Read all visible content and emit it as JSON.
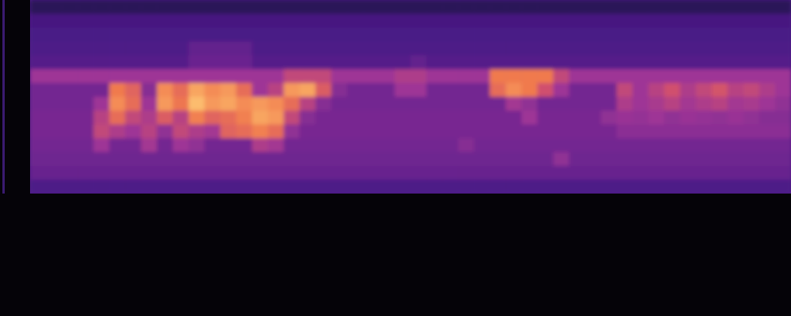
{
  "chart_data": {
    "type": "heatmap",
    "tick_labels": false,
    "zlim": [
      0,
      100
    ],
    "cells": [
      [
        28,
        28,
        28,
        28,
        28,
        28,
        28,
        28,
        28,
        28,
        28,
        28,
        28,
        28,
        28,
        28,
        28,
        28,
        28,
        28,
        28,
        28,
        28,
        28,
        28,
        28,
        28,
        28,
        28,
        28,
        28,
        28,
        28,
        28,
        28,
        28,
        28,
        28,
        28,
        28,
        28,
        28,
        28,
        28,
        28,
        28,
        28,
        28
      ],
      [
        34,
        34,
        34,
        34,
        34,
        34,
        34,
        34,
        34,
        34,
        34,
        34,
        34,
        34,
        34,
        34,
        34,
        34,
        34,
        34,
        34,
        34,
        34,
        34,
        34,
        34,
        34,
        34,
        34,
        34,
        34,
        34,
        34,
        34,
        34,
        34,
        34,
        34,
        34,
        34,
        34,
        34,
        34,
        34,
        34,
        34,
        34,
        34
      ],
      [
        35,
        35,
        35,
        35,
        35,
        35,
        35,
        35,
        35,
        35,
        35,
        35,
        35,
        35,
        35,
        35,
        35,
        35,
        35,
        35,
        35,
        35,
        35,
        35,
        35,
        35,
        35,
        35,
        35,
        35,
        35,
        35,
        35,
        35,
        35,
        35,
        35,
        35,
        35,
        35,
        35,
        35,
        35,
        35,
        35,
        35,
        35,
        35
      ],
      [
        36,
        36,
        36,
        36,
        36,
        36,
        36,
        36,
        36,
        36,
        42,
        42,
        42,
        42,
        36,
        36,
        36,
        36,
        36,
        36,
        36,
        36,
        36,
        36,
        36,
        36,
        36,
        36,
        36,
        36,
        36,
        36,
        36,
        36,
        36,
        36,
        36,
        36,
        36,
        36,
        36,
        36,
        36,
        36,
        36,
        36,
        36,
        36
      ],
      [
        38,
        38,
        38,
        38,
        38,
        38,
        38,
        38,
        38,
        38,
        44,
        44,
        44,
        44,
        38,
        38,
        38,
        38,
        38,
        38,
        38,
        38,
        38,
        38,
        42,
        38,
        38,
        38,
        38,
        38,
        38,
        38,
        38,
        38,
        38,
        38,
        38,
        38,
        38,
        38,
        38,
        38,
        38,
        38,
        38,
        38,
        38,
        38
      ],
      [
        55,
        55,
        55,
        55,
        55,
        55,
        55,
        55,
        55,
        55,
        55,
        55,
        55,
        55,
        55,
        55,
        62,
        62,
        62,
        55,
        55,
        55,
        55,
        58,
        58,
        55,
        55,
        55,
        55,
        75,
        75,
        75,
        75,
        62,
        55,
        55,
        55,
        55,
        55,
        55,
        55,
        55,
        55,
        55,
        55,
        55,
        55,
        55
      ],
      [
        46,
        46,
        46,
        46,
        46,
        75,
        70,
        50,
        78,
        72,
        82,
        78,
        80,
        72,
        55,
        60,
        80,
        82,
        68,
        50,
        46,
        46,
        46,
        55,
        55,
        46,
        46,
        46,
        46,
        72,
        78,
        75,
        65,
        55,
        46,
        46,
        46,
        62,
        55,
        60,
        65,
        58,
        62,
        66,
        60,
        62,
        58,
        55
      ],
      [
        46,
        46,
        46,
        46,
        55,
        78,
        72,
        55,
        80,
        74,
        86,
        80,
        82,
        78,
        80,
        78,
        72,
        60,
        50,
        46,
        46,
        46,
        46,
        46,
        46,
        46,
        46,
        46,
        46,
        46,
        56,
        52,
        46,
        46,
        46,
        46,
        46,
        58,
        55,
        57,
        60,
        56,
        58,
        60,
        56,
        57,
        55,
        52
      ],
      [
        47,
        47,
        47,
        47,
        60,
        72,
        62,
        58,
        68,
        60,
        76,
        70,
        72,
        76,
        82,
        80,
        62,
        50,
        47,
        47,
        47,
        47,
        47,
        47,
        47,
        47,
        47,
        47,
        47,
        47,
        47,
        55,
        47,
        47,
        47,
        47,
        52,
        54,
        53,
        55,
        52,
        54,
        53,
        52,
        54,
        52,
        50,
        50
      ],
      [
        47,
        47,
        47,
        47,
        62,
        58,
        55,
        60,
        52,
        62,
        58,
        56,
        70,
        72,
        76,
        72,
        52,
        47,
        47,
        47,
        47,
        47,
        47,
        47,
        47,
        47,
        47,
        47,
        47,
        47,
        47,
        47,
        47,
        47,
        47,
        47,
        47,
        51,
        51,
        51,
        51,
        51,
        51,
        51,
        51,
        51,
        51,
        51
      ],
      [
        46,
        46,
        46,
        46,
        55,
        46,
        46,
        56,
        46,
        55,
        52,
        46,
        46,
        46,
        58,
        56,
        46,
        46,
        46,
        46,
        46,
        46,
        46,
        46,
        46,
        46,
        46,
        50,
        46,
        46,
        46,
        46,
        46,
        46,
        46,
        46,
        46,
        46,
        46,
        46,
        46,
        46,
        46,
        46,
        46,
        46,
        46,
        46
      ],
      [
        45,
        45,
        45,
        45,
        45,
        45,
        45,
        45,
        45,
        45,
        45,
        45,
        45,
        45,
        45,
        45,
        45,
        45,
        45,
        45,
        45,
        45,
        45,
        45,
        45,
        45,
        45,
        45,
        45,
        45,
        45,
        45,
        45,
        52,
        45,
        45,
        45,
        45,
        45,
        45,
        45,
        45,
        45,
        45,
        45,
        45,
        45,
        45
      ],
      [
        43,
        43,
        43,
        43,
        43,
        43,
        43,
        43,
        43,
        43,
        43,
        43,
        43,
        43,
        43,
        43,
        43,
        43,
        43,
        43,
        43,
        43,
        43,
        43,
        43,
        43,
        43,
        43,
        43,
        43,
        43,
        43,
        43,
        43,
        43,
        43,
        43,
        43,
        43,
        43,
        43,
        43,
        43,
        43,
        43,
        43,
        43,
        43
      ],
      [
        36,
        36,
        36,
        36,
        36,
        36,
        36,
        36,
        36,
        36,
        36,
        36,
        36,
        36,
        36,
        36,
        36,
        36,
        36,
        36,
        36,
        36,
        36,
        36,
        36,
        36,
        36,
        36,
        36,
        36,
        36,
        36,
        36,
        36,
        36,
        36,
        36,
        36,
        36,
        36,
        36,
        36,
        36,
        36,
        36,
        36,
        36,
        36
      ]
    ]
  }
}
